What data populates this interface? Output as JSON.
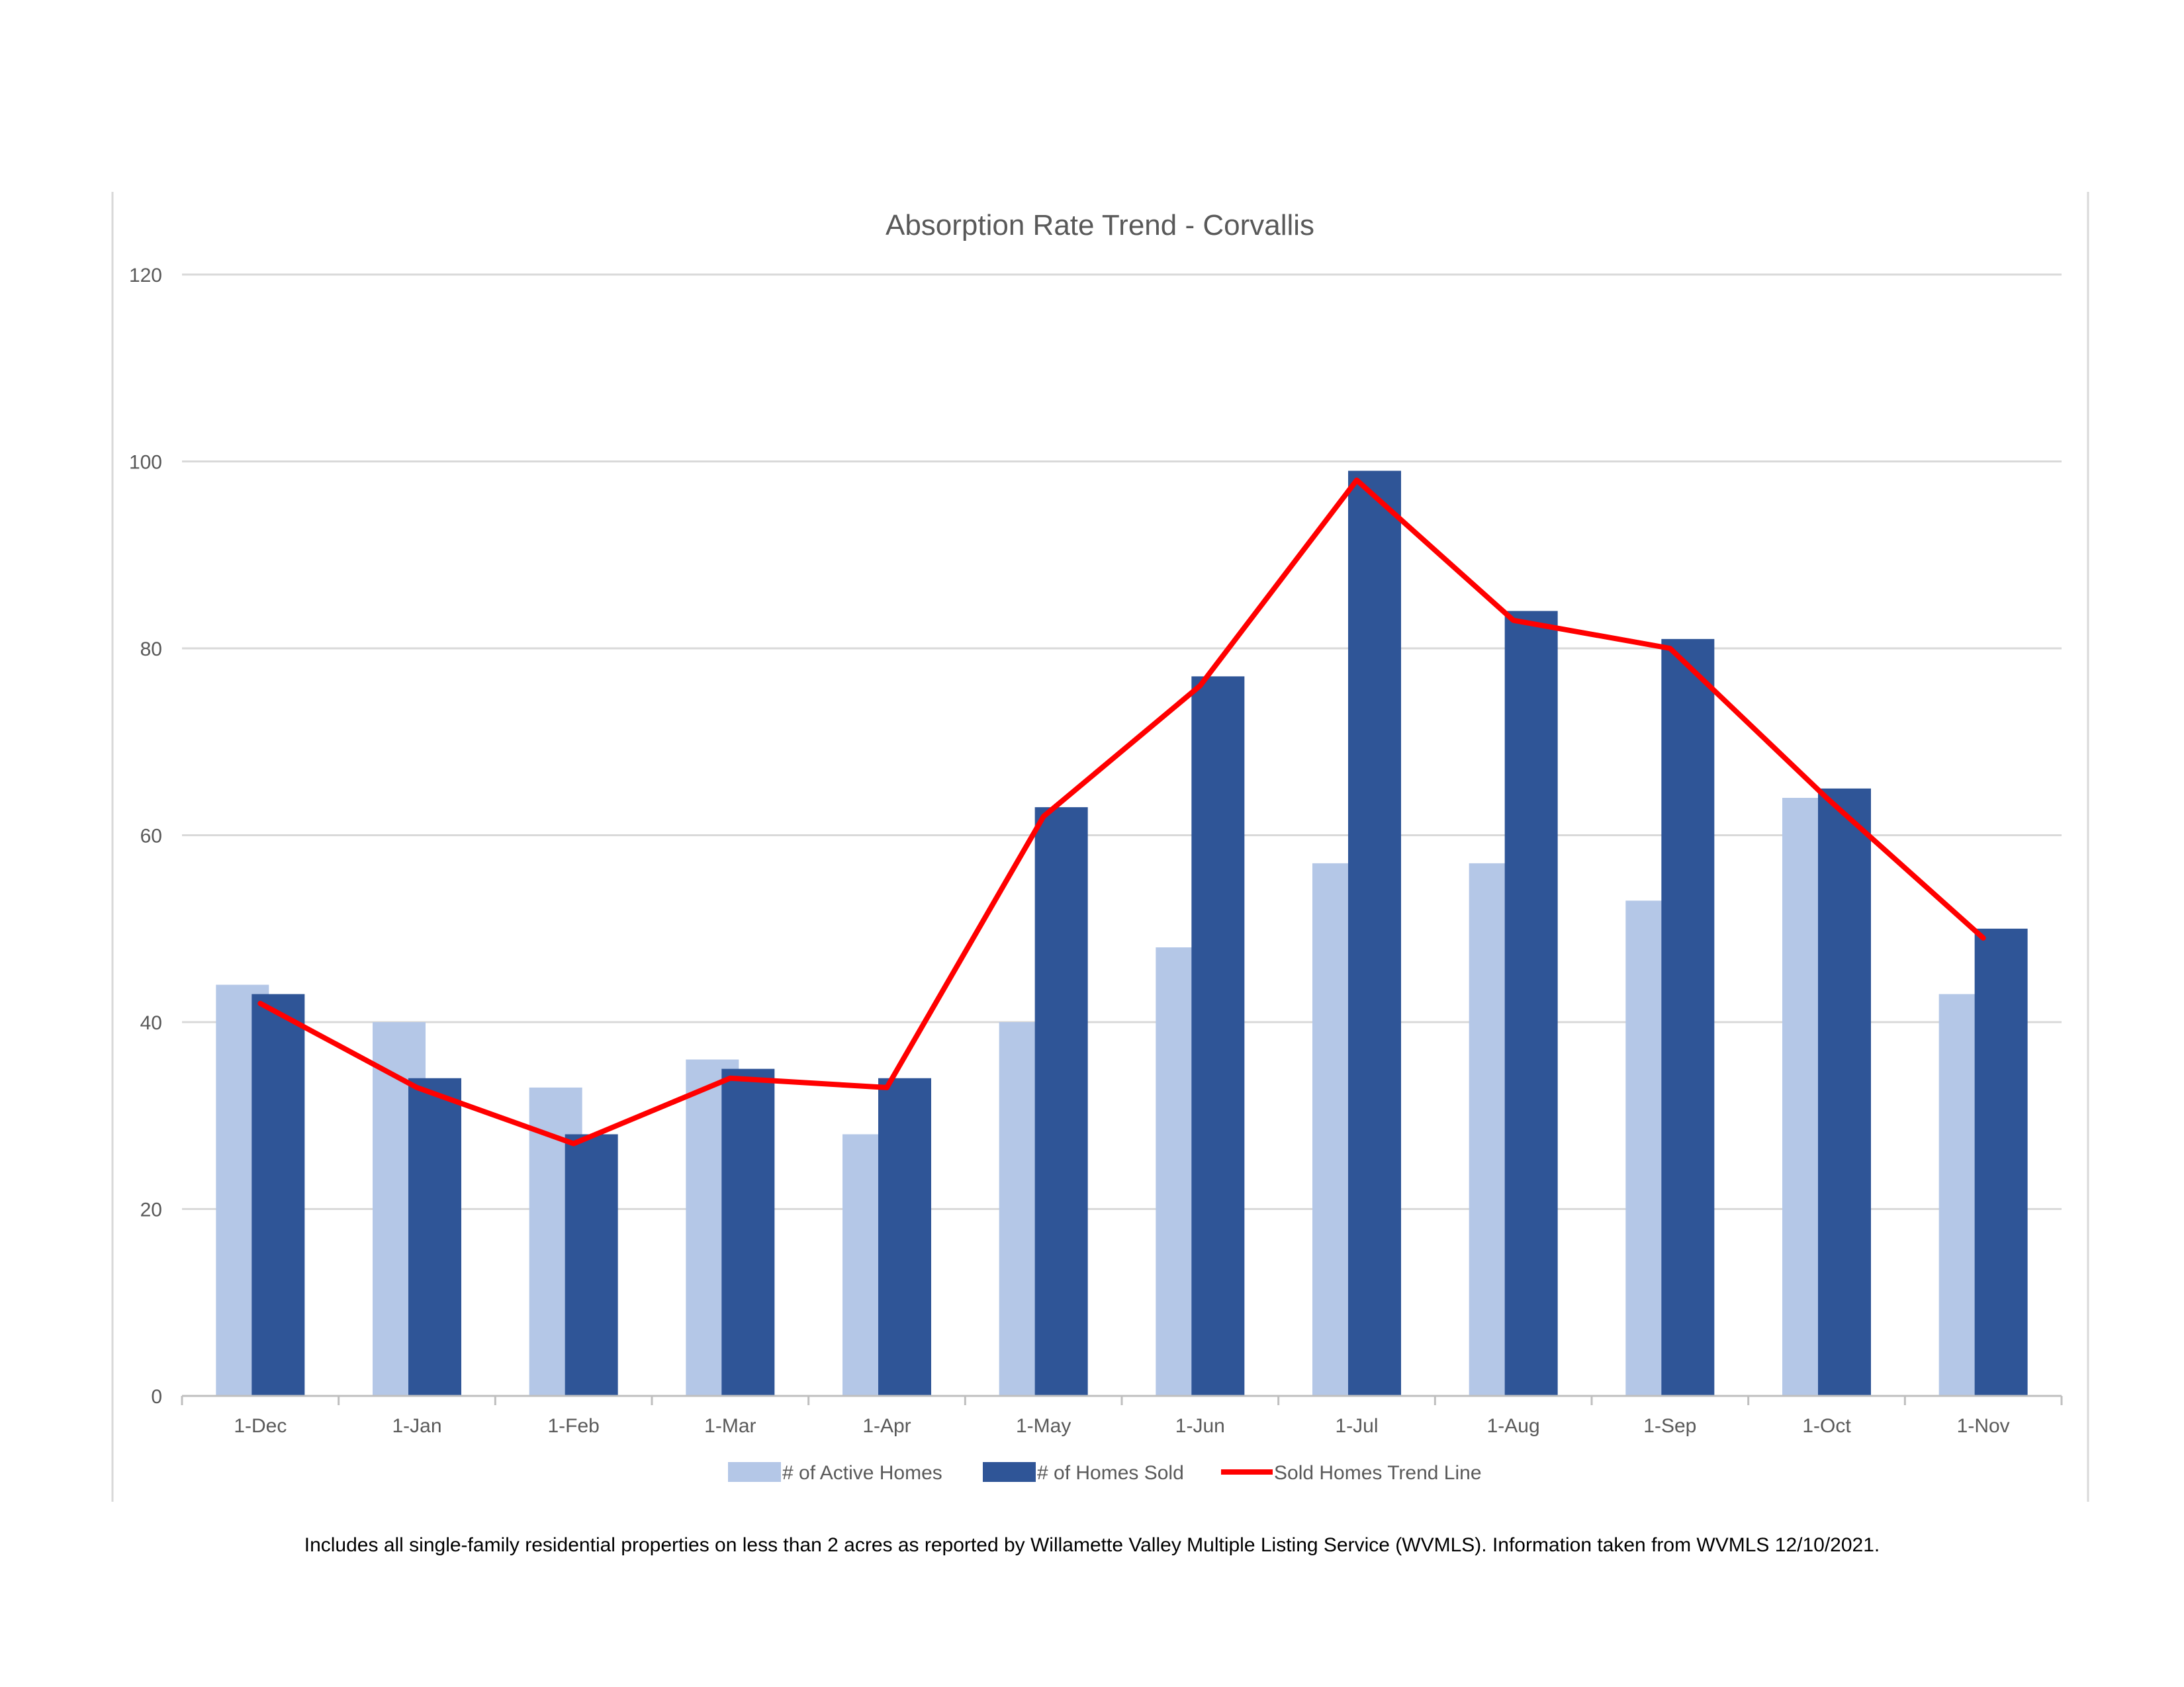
{
  "chart_data": {
    "type": "bar",
    "title": "Absorption Rate Trend - Corvallis",
    "categories": [
      "1-Dec",
      "1-Jan",
      "1-Feb",
      "1-Mar",
      "1-Apr",
      "1-May",
      "1-Jun",
      "1-Jul",
      "1-Aug",
      "1-Sep",
      "1-Oct",
      "1-Nov"
    ],
    "series": [
      {
        "name": "# of Active Homes",
        "type": "bar",
        "color": "#b4c7e7",
        "values": [
          44,
          40,
          33,
          36,
          28,
          40,
          48,
          57,
          57,
          53,
          64,
          43
        ]
      },
      {
        "name": "# of Homes Sold",
        "type": "bar",
        "color": "#2f5597",
        "values": [
          43,
          34,
          28,
          35,
          34,
          63,
          77,
          99,
          84,
          81,
          65,
          50
        ]
      },
      {
        "name": "Sold Homes Trend Line",
        "type": "line",
        "color": "#ff0000",
        "values": [
          42,
          33,
          27,
          34,
          33,
          62,
          76,
          98,
          83,
          80,
          64,
          49
        ]
      }
    ],
    "ylim": [
      0,
      120
    ],
    "yticks": [
      "0",
      "20",
      "40",
      "60",
      "80",
      "100",
      "120"
    ],
    "xlabel": "",
    "ylabel": "",
    "grid": true,
    "legend_position": "bottom"
  },
  "footnote": "Includes all single-family residential properties on less than 2 acres as reported by Willamette Valley Multiple Listing Service (WVMLS). Information taken from WVMLS 12/10/2021."
}
